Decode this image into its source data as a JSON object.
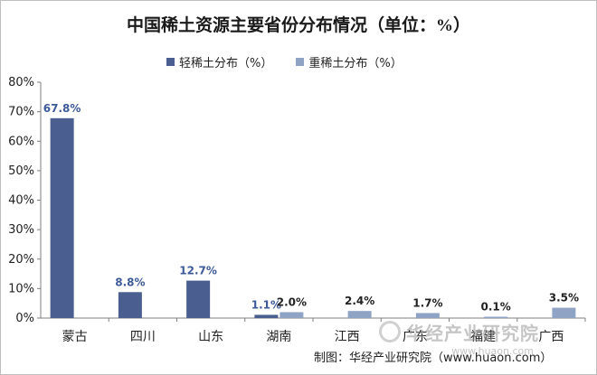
{
  "chart_data": {
    "type": "bar",
    "title": "中国稀土资源主要省份分布情况（单位：%）",
    "categories": [
      "蒙古",
      "四川",
      "山东",
      "湖南",
      "江西",
      "广东",
      "福建",
      "广西"
    ],
    "series": [
      {
        "name": "轻稀土分布（%）",
        "color": "#4a5f8f",
        "labelColor": "#3d5a99",
        "values": [
          67.8,
          8.8,
          12.7,
          1.1,
          null,
          null,
          null,
          null
        ]
      },
      {
        "name": "重稀土分布（%）",
        "color": "#8fa3c4",
        "labelColor": "#222222",
        "values": [
          null,
          null,
          null,
          2.0,
          2.4,
          1.7,
          0.1,
          3.5
        ]
      }
    ],
    "ylim": [
      0,
      80
    ],
    "yticks": [
      "0%",
      "10%",
      "20%",
      "30%",
      "40%",
      "50%",
      "60%",
      "70%",
      "80%"
    ],
    "legend": "top",
    "grid": false
  },
  "watermark": {
    "text": "华经产业研究院",
    "url": "www.huaon.com"
  },
  "source": "制图：华经产业研究院（www.huaon.com）"
}
